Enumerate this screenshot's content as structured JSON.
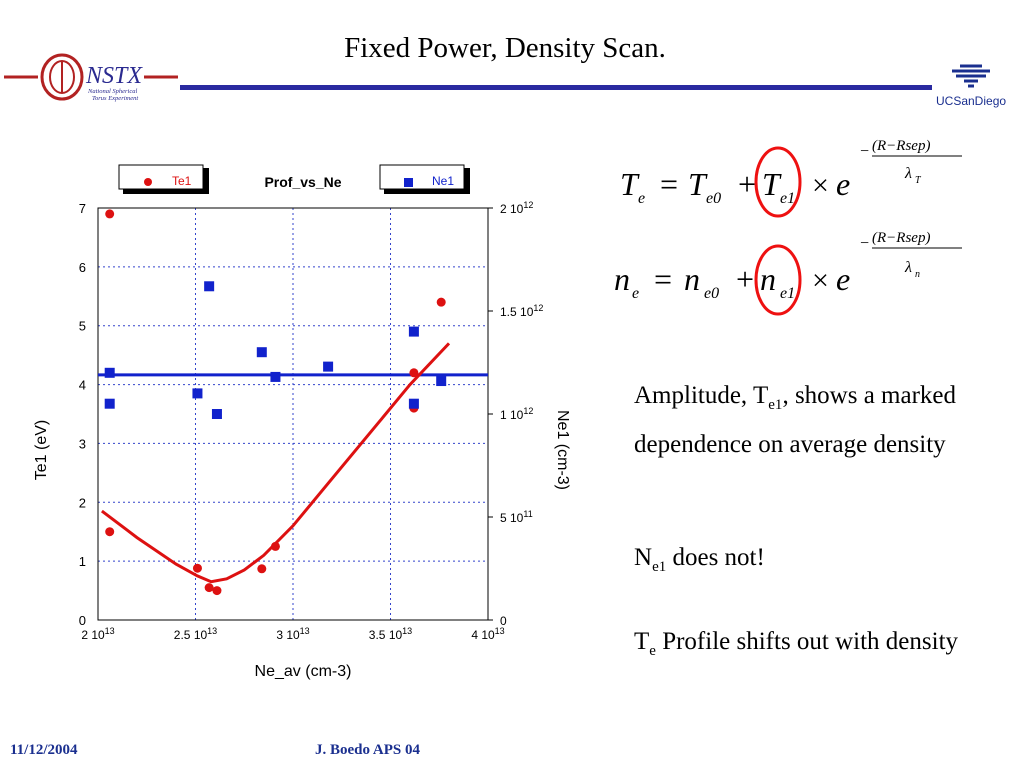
{
  "slide": {
    "title": "Fixed Power, Density Scan.",
    "logo_left_text": "NSTX",
    "logo_left_sub1": "National Spherical",
    "logo_left_sub2": "Torus Experiment",
    "logo_right_text": "UCSanDiego",
    "footer_date": "11/12/2004",
    "footer_author": "J. Boedo APS 04"
  },
  "equations": {
    "eq1": {
      "lhs": "T",
      "lhs_sub": "e",
      "t0": "T",
      "t0_sub": "e0",
      "t1": "T",
      "t1_sub": "e1",
      "exp_num": "(R−Rsep)",
      "exp_den": "λ",
      "exp_den_sub": "T"
    },
    "eq2": {
      "lhs": "n",
      "lhs_sub": "e",
      "t0": "n",
      "t0_sub": "e0",
      "t1": "n",
      "t1_sub": "e1",
      "exp_num": "(R−Rsep)",
      "exp_den": "λ",
      "exp_den_sub": "n"
    }
  },
  "text": {
    "b1_pre": "Amplitude, T",
    "b1_sub": "e1",
    "b1_post": ", shows a marked dependence on average density",
    "b2_pre": "N",
    "b2_sub": "e1",
    "b2_post": " does not!",
    "b3_pre": "T",
    "b3_sub": "e",
    "b3_post": " Profile shifts out with density"
  },
  "chart_data": {
    "type": "scatter",
    "title": "Prof_vs_Ne",
    "xlabel": "Ne_av (cm-3)",
    "ylabel": "Te1 (eV)",
    "y2label": "Ne1 (cm-3)",
    "xlim": [
      20000000000000.0,
      40000000000000.0
    ],
    "ylim": [
      0,
      7
    ],
    "y2lim": [
      0,
      2000000000000.0
    ],
    "grid": true,
    "x_ticks": [
      {
        "v": 20000000000000.0,
        "m": "2 10",
        "e": "13"
      },
      {
        "v": 25000000000000.0,
        "m": "2.5 10",
        "e": "13"
      },
      {
        "v": 30000000000000.0,
        "m": "3 10",
        "e": "13"
      },
      {
        "v": 35000000000000.0,
        "m": "3.5 10",
        "e": "13"
      },
      {
        "v": 40000000000000.0,
        "m": "4 10",
        "e": "13"
      }
    ],
    "y_ticks": [
      {
        "v": 0,
        "t": "0"
      },
      {
        "v": 1,
        "t": "1"
      },
      {
        "v": 2,
        "t": "2"
      },
      {
        "v": 3,
        "t": "3"
      },
      {
        "v": 4,
        "t": "4"
      },
      {
        "v": 5,
        "t": "5"
      },
      {
        "v": 6,
        "t": "6"
      },
      {
        "v": 7,
        "t": "7"
      }
    ],
    "y2_ticks": [
      {
        "v": 0,
        "m": "0",
        "e": ""
      },
      {
        "v": 500000000000.0,
        "m": "5 10",
        "e": "11"
      },
      {
        "v": 1000000000000.0,
        "m": "1 10",
        "e": "12"
      },
      {
        "v": 1500000000000.0,
        "m": "1.5 10",
        "e": "12"
      },
      {
        "v": 2000000000000.0,
        "m": "2 10",
        "e": "12"
      }
    ],
    "legend": [
      {
        "name": "Te1",
        "color": "#dd1111",
        "marker": "circle"
      },
      {
        "name": "Ne1",
        "color": "#1122cc",
        "marker": "square"
      }
    ],
    "series": [
      {
        "name": "Te1",
        "axis": "left",
        "marker": "circle",
        "color": "#dd1111",
        "x": [
          20600000000000.0,
          20600000000000.0,
          25100000000000.0,
          25700000000000.0,
          26100000000000.0,
          28400000000000.0,
          29100000000000.0,
          36200000000000.0,
          36200000000000.0,
          37600000000000.0
        ],
        "y": [
          6.9,
          1.5,
          0.88,
          0.55,
          0.5,
          0.87,
          1.25,
          4.2,
          3.6,
          5.4
        ]
      },
      {
        "name": "Ne1",
        "axis": "right",
        "marker": "square",
        "color": "#1122cc",
        "x": [
          20600000000000.0,
          20600000000000.0,
          25100000000000.0,
          25700000000000.0,
          26100000000000.0,
          28400000000000.0,
          29100000000000.0,
          31800000000000.0,
          36200000000000.0,
          36200000000000.0,
          37600000000000.0
        ],
        "y": [
          1200000000000.0,
          1050000000000.0,
          1100000000000.0,
          1620000000000.0,
          1000000000000.0,
          1300000000000.0,
          1180000000000.0,
          1230000000000.0,
          1400000000000.0,
          1050000000000.0,
          1160000000000.0
        ]
      }
    ],
    "fits": [
      {
        "for": "Ne1",
        "axis": "right",
        "color": "#1122cc",
        "x": [
          20000000000000.0,
          40000000000000.0
        ],
        "y": [
          1190000000000.0,
          1190000000000.0
        ]
      },
      {
        "for": "Te1",
        "axis": "left",
        "color": "#dd1111",
        "x": [
          20200000000000.0,
          22000000000000.0,
          24000000000000.0,
          25100000000000.0,
          25800000000000.0,
          26600000000000.0,
          27500000000000.0,
          28500000000000.0,
          30000000000000.0,
          32000000000000.0,
          34000000000000.0,
          36000000000000.0,
          38000000000000.0
        ],
        "y": [
          1.85,
          1.4,
          0.95,
          0.75,
          0.65,
          0.7,
          0.85,
          1.1,
          1.6,
          2.4,
          3.2,
          4.0,
          4.7
        ]
      }
    ]
  },
  "colors": {
    "accent": "#2a2aa0",
    "te": "#dd1111",
    "ne": "#1122cc",
    "highlight": "#ee1111"
  }
}
